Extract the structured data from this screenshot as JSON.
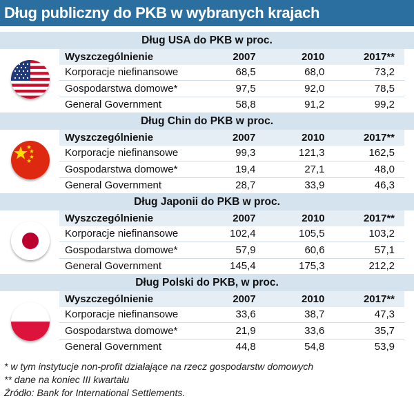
{
  "title": "Dług publiczny do PKB w wybranych krajach",
  "columns": [
    "Wyszczególnienie",
    "2007",
    "2010",
    "2017**"
  ],
  "sections": [
    {
      "heading": "Dług USA do PKB w proc.",
      "flag": "usa-flag-icon",
      "rows": [
        {
          "label": "Korporacje niefinansowe",
          "v2007": "68,5",
          "v2010": "68,0",
          "v2017": "73,2"
        },
        {
          "label": "Gospodarstwa domowe*",
          "v2007": "97,5",
          "v2010": "92,0",
          "v2017": "78,5"
        },
        {
          "label": "General Government",
          "v2007": "58,8",
          "v2010": "91,2",
          "v2017": "99,2"
        }
      ]
    },
    {
      "heading": "Dług Chin do PKB w proc.",
      "flag": "china-flag-icon",
      "rows": [
        {
          "label": "Korporacje niefinansowe",
          "v2007": "99,3",
          "v2010": "121,3",
          "v2017": "162,5"
        },
        {
          "label": "Gospodarstwa domowe*",
          "v2007": "19,4",
          "v2010": "27,1",
          "v2017": "48,0"
        },
        {
          "label": "General Government",
          "v2007": "28,7",
          "v2010": "33,9",
          "v2017": "46,3"
        }
      ]
    },
    {
      "heading": "Dług Japonii do PKB w proc.",
      "flag": "japan-flag-icon",
      "rows": [
        {
          "label": "Korporacje niefinansowe",
          "v2007": "102,4",
          "v2010": "105,5",
          "v2017": "103,2"
        },
        {
          "label": "Gospodarstwa domowe*",
          "v2007": "57,9",
          "v2010": "60,6",
          "v2017": "57,1"
        },
        {
          "label": "General Government",
          "v2007": "145,4",
          "v2010": "175,3",
          "v2017": "212,2"
        }
      ]
    },
    {
      "heading": "Dług Polski do PKB, w proc.",
      "flag": "poland-flag-icon",
      "rows": [
        {
          "label": "Korporacje niefinansowe",
          "v2007": "33,6",
          "v2010": "38,7",
          "v2017": "47,3"
        },
        {
          "label": "Gospodarstwa domowe*",
          "v2007": "21,9",
          "v2010": "33,6",
          "v2017": "35,7"
        },
        {
          "label": "General Government",
          "v2007": "44,8",
          "v2010": "54,8",
          "v2017": "53,9"
        }
      ]
    }
  ],
  "footnotes": {
    "note1": "* w tym instytucje non-profit działające na rzecz gospodarstw domowych",
    "note2": "** dane na koniec III kwartału",
    "source": "Źródło: Bank for International Settlements."
  },
  "colors": {
    "title_bar": "#2a6fa0",
    "section_header": "#d5e3ee",
    "column_header": "#e6eef5"
  }
}
